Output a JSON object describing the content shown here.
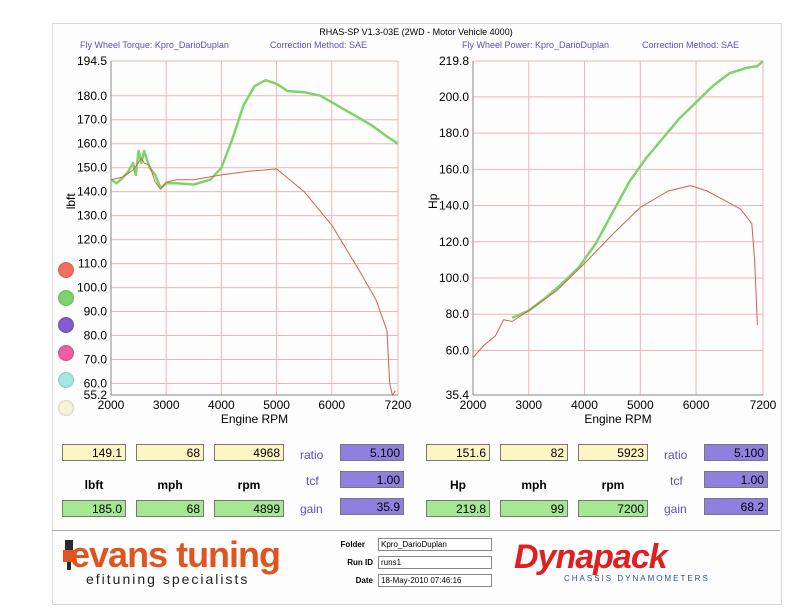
{
  "header": {
    "title": "RHAS-SP V1.3-03E  (2WD - Motor Vehicle 4000)",
    "left_subtitle": "Fly Wheel Torque: Kpro_DarioDuplan",
    "left_correction": "Correction Method: SAE",
    "right_subtitle": "Fly Wheel Power: Kpro_DarioDuplan",
    "right_correction": "Correction Method: SAE"
  },
  "colors": {
    "green_curve": "#7ed36a",
    "red_curve": "#d2624e",
    "grid": "#f0b4b4",
    "accent": "#5a4fc0"
  },
  "chart_data": [
    {
      "type": "line",
      "title": "",
      "xlabel": "Engine RPM",
      "ylabel": "lbft",
      "xlim": [
        2000,
        7200
      ],
      "ylim": [
        55.2,
        194.5
      ],
      "xticks": [
        "2000",
        "3000",
        "4000",
        "5000",
        "6000",
        "7200"
      ],
      "yticks": [
        "194.5",
        "180.0",
        "170.0",
        "160.0",
        "150.0",
        "140.0",
        "130.0",
        "120.0",
        "110.0",
        "100.0",
        "90.0",
        "80.0",
        "70.0",
        "60.0",
        "55.2"
      ],
      "series": [
        {
          "color": "#7ed36a",
          "x": [
            2000,
            2100,
            2200,
            2300,
            2400,
            2450,
            2500,
            2550,
            2600,
            2700,
            2800,
            2900,
            3000,
            3200,
            3500,
            3800,
            4000,
            4200,
            4400,
            4600,
            4800,
            5000,
            5200,
            5500,
            5800,
            6100,
            6400,
            6700,
            7000,
            7200
          ],
          "y": [
            145,
            143.5,
            145.5,
            148,
            152,
            147,
            157,
            152,
            157,
            150,
            147,
            141.5,
            143.5,
            143.5,
            143,
            145,
            150,
            162,
            176,
            184,
            186.5,
            185,
            182,
            181.5,
            180,
            176,
            172,
            168,
            163,
            160
          ]
        },
        {
          "color": "#d2624e",
          "x": [
            2000,
            2200,
            2400,
            2550,
            2600,
            2700,
            2800,
            2900,
            3000,
            3200,
            3500,
            4000,
            4500,
            5000,
            5500,
            6000,
            6500,
            6800,
            7000,
            7050,
            7100,
            7150
          ],
          "y": [
            145,
            146,
            149,
            154,
            152,
            151,
            144,
            141,
            144,
            145,
            145,
            147,
            148.5,
            149.5,
            140,
            126,
            107,
            95,
            82,
            60,
            55,
            57
          ]
        }
      ]
    },
    {
      "type": "line",
      "title": "",
      "xlabel": "Engine RPM",
      "ylabel": "Hp",
      "xlim": [
        2000,
        7200
      ],
      "ylim": [
        35.4,
        219.8
      ],
      "xticks": [
        "2000",
        "3000",
        "4000",
        "5000",
        "6000",
        "7200"
      ],
      "yticks": [
        "219.8",
        "200.0",
        "180.0",
        "160.0",
        "140.0",
        "120.0",
        "100.0",
        "80.0",
        "60.0",
        "35.4"
      ],
      "series": [
        {
          "color": "#7ed36a",
          "x": [
            2700,
            3000,
            3300,
            3600,
            3900,
            4200,
            4500,
            4800,
            5100,
            5400,
            5700,
            6000,
            6300,
            6600,
            6900,
            7100,
            7200
          ],
          "y": [
            78,
            82,
            89,
            97,
            106,
            119,
            136,
            153,
            166,
            177,
            188,
            197,
            206,
            213,
            216,
            217,
            219.8
          ]
        },
        {
          "color": "#d2624e",
          "x": [
            2000,
            2200,
            2400,
            2550,
            2700,
            3000,
            3500,
            4000,
            4500,
            5000,
            5500,
            5900,
            6200,
            6500,
            6800,
            7000,
            7050,
            7100
          ],
          "y": [
            56,
            63,
            68,
            77,
            76,
            82,
            93,
            108,
            124,
            139,
            148,
            151,
            148,
            143,
            138,
            130,
            110,
            74
          ]
        }
      ]
    }
  ],
  "left_panel": {
    "row1": [
      "149.1",
      "68",
      "4968"
    ],
    "labels": [
      "lbft",
      "mph",
      "rpm"
    ],
    "row2": [
      "185.0",
      "68",
      "4899"
    ],
    "right_labels": [
      "ratio",
      "tcf",
      "gain"
    ],
    "right_values": [
      "5.100",
      "1.00",
      "35.9"
    ]
  },
  "right_panel": {
    "row1": [
      "151.6",
      "82",
      "5923"
    ],
    "labels": [
      "Hp",
      "mph",
      "rpm"
    ],
    "row2": [
      "219.8",
      "99",
      "7200"
    ],
    "right_labels": [
      "ratio",
      "tcf",
      "gain"
    ],
    "right_values": [
      "5.100",
      "1.00",
      "68.2"
    ]
  },
  "footer": {
    "logo": "evans tuning",
    "tagline": "efituning specialists",
    "folder_label": "Folder",
    "folder_value": "Kpro_DarioDuplan",
    "run_label": "Run ID",
    "run_value": "runs1",
    "date_label": "Date",
    "date_value": "18-May-2010  07:46:16",
    "brand": "Dynapack",
    "brand_tagline": "CHASSIS DYNAMOMETERS"
  },
  "legend_dots": [
    "#f07060",
    "#7ed36a",
    "#7d5fd0",
    "#ee5fa0",
    "#a8e6e0",
    "#f7f2d8"
  ]
}
